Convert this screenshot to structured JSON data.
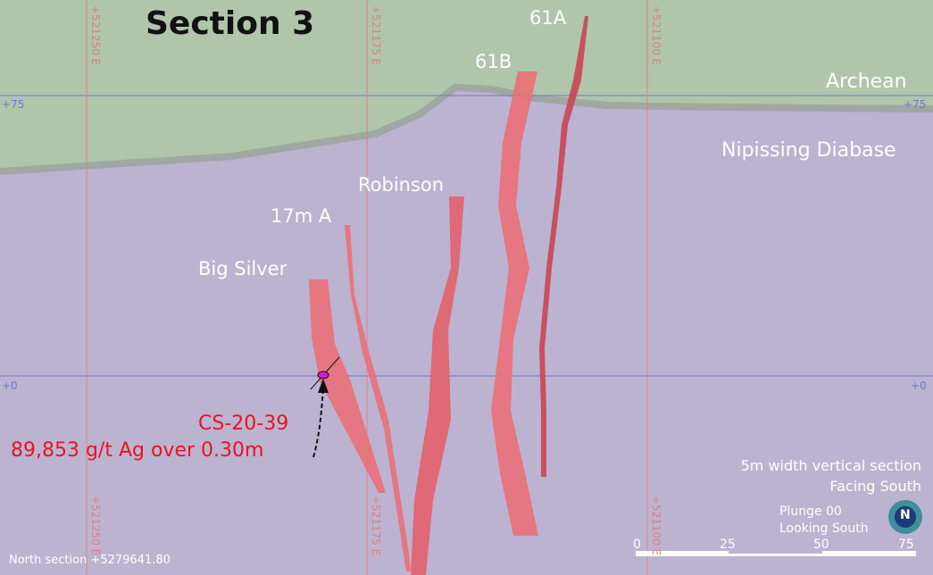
{
  "title": "Section 3",
  "units": {
    "archean": "Archean",
    "nipissing": "Nipissing Diabase"
  },
  "veins": {
    "v61a": "61A",
    "v61b": "61B",
    "robinson": "Robinson",
    "v17m": "17m A",
    "big_silver": "Big Silver"
  },
  "grid": {
    "elev_75": "+75",
    "elev_0": "+0",
    "east_1": "+521250 E",
    "east_2": "+521175 E",
    "east_3": "+521100 E"
  },
  "callout": {
    "hole": "CS-20-39",
    "assay": "89,853 g/t Ag over 0.30m"
  },
  "info": {
    "width": "5m width vertical section",
    "facing": "Facing South",
    "plunge": "Plunge 00",
    "looking": "Looking South",
    "north_section": "North section +5279641.80"
  },
  "scale": {
    "ticks": [
      "0",
      "25",
      "50",
      "75"
    ]
  },
  "colors": {
    "archean": "#afc6ab",
    "diabase": "#bcb3d0",
    "vein": "#ea6f78",
    "grid_blue": "#6f74d6",
    "grid_red": "#e08080",
    "callout_red": "#e8141f"
  },
  "north_arrow_letter": "N"
}
